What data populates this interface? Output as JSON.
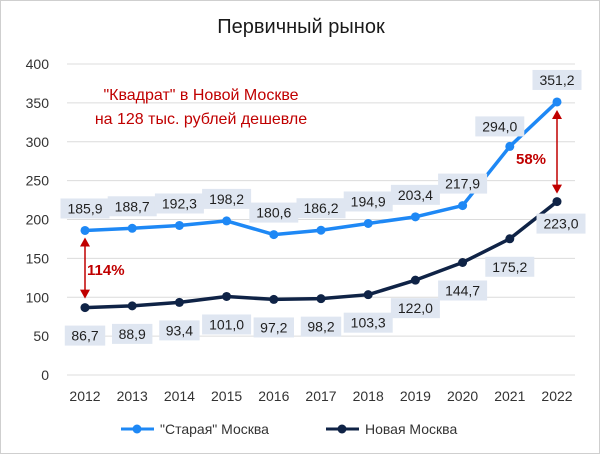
{
  "chart_data": {
    "type": "line",
    "title": "Первичный рынок",
    "xlabel": "",
    "ylabel": "",
    "categories": [
      "2012",
      "2013",
      "2014",
      "2015",
      "2016",
      "2017",
      "2018",
      "2019",
      "2020",
      "2021",
      "2022"
    ],
    "ylim": [
      0,
      400
    ],
    "yticks": [
      "0",
      "50",
      "100",
      "150",
      "200",
      "250",
      "300",
      "350",
      "400"
    ],
    "grid": true,
    "legend_position": "bottom",
    "series": [
      {
        "name": "\"Старая\" Москва",
        "color": "#1e88f5",
        "values": [
          185.9,
          188.7,
          192.3,
          198.2,
          180.6,
          186.2,
          194.9,
          203.4,
          217.9,
          294.0,
          351.2
        ],
        "labels": [
          "185,9",
          "188,7",
          "192,3",
          "198,2",
          "180,6",
          "186,2",
          "194,9",
          "203,4",
          "217,9",
          "294,0",
          "351,2"
        ]
      },
      {
        "name": "Новая Москва",
        "color": "#0f2346",
        "values": [
          86.7,
          88.9,
          93.4,
          101.0,
          97.2,
          98.2,
          103.3,
          122.0,
          144.7,
          175.2,
          223.0
        ],
        "labels": [
          "86,7",
          "88,9",
          "93,4",
          "101,0",
          "97,2",
          "98,2",
          "103,3",
          "122,0",
          "144,7",
          "175,2",
          "223,0"
        ]
      }
    ],
    "annotation": {
      "line1": "\"Квадрат\" в Новой Москве",
      "line2": "на 128 тыс. рублей дешевле"
    },
    "diff_labels": {
      "start": "114%",
      "end": "58%"
    }
  }
}
